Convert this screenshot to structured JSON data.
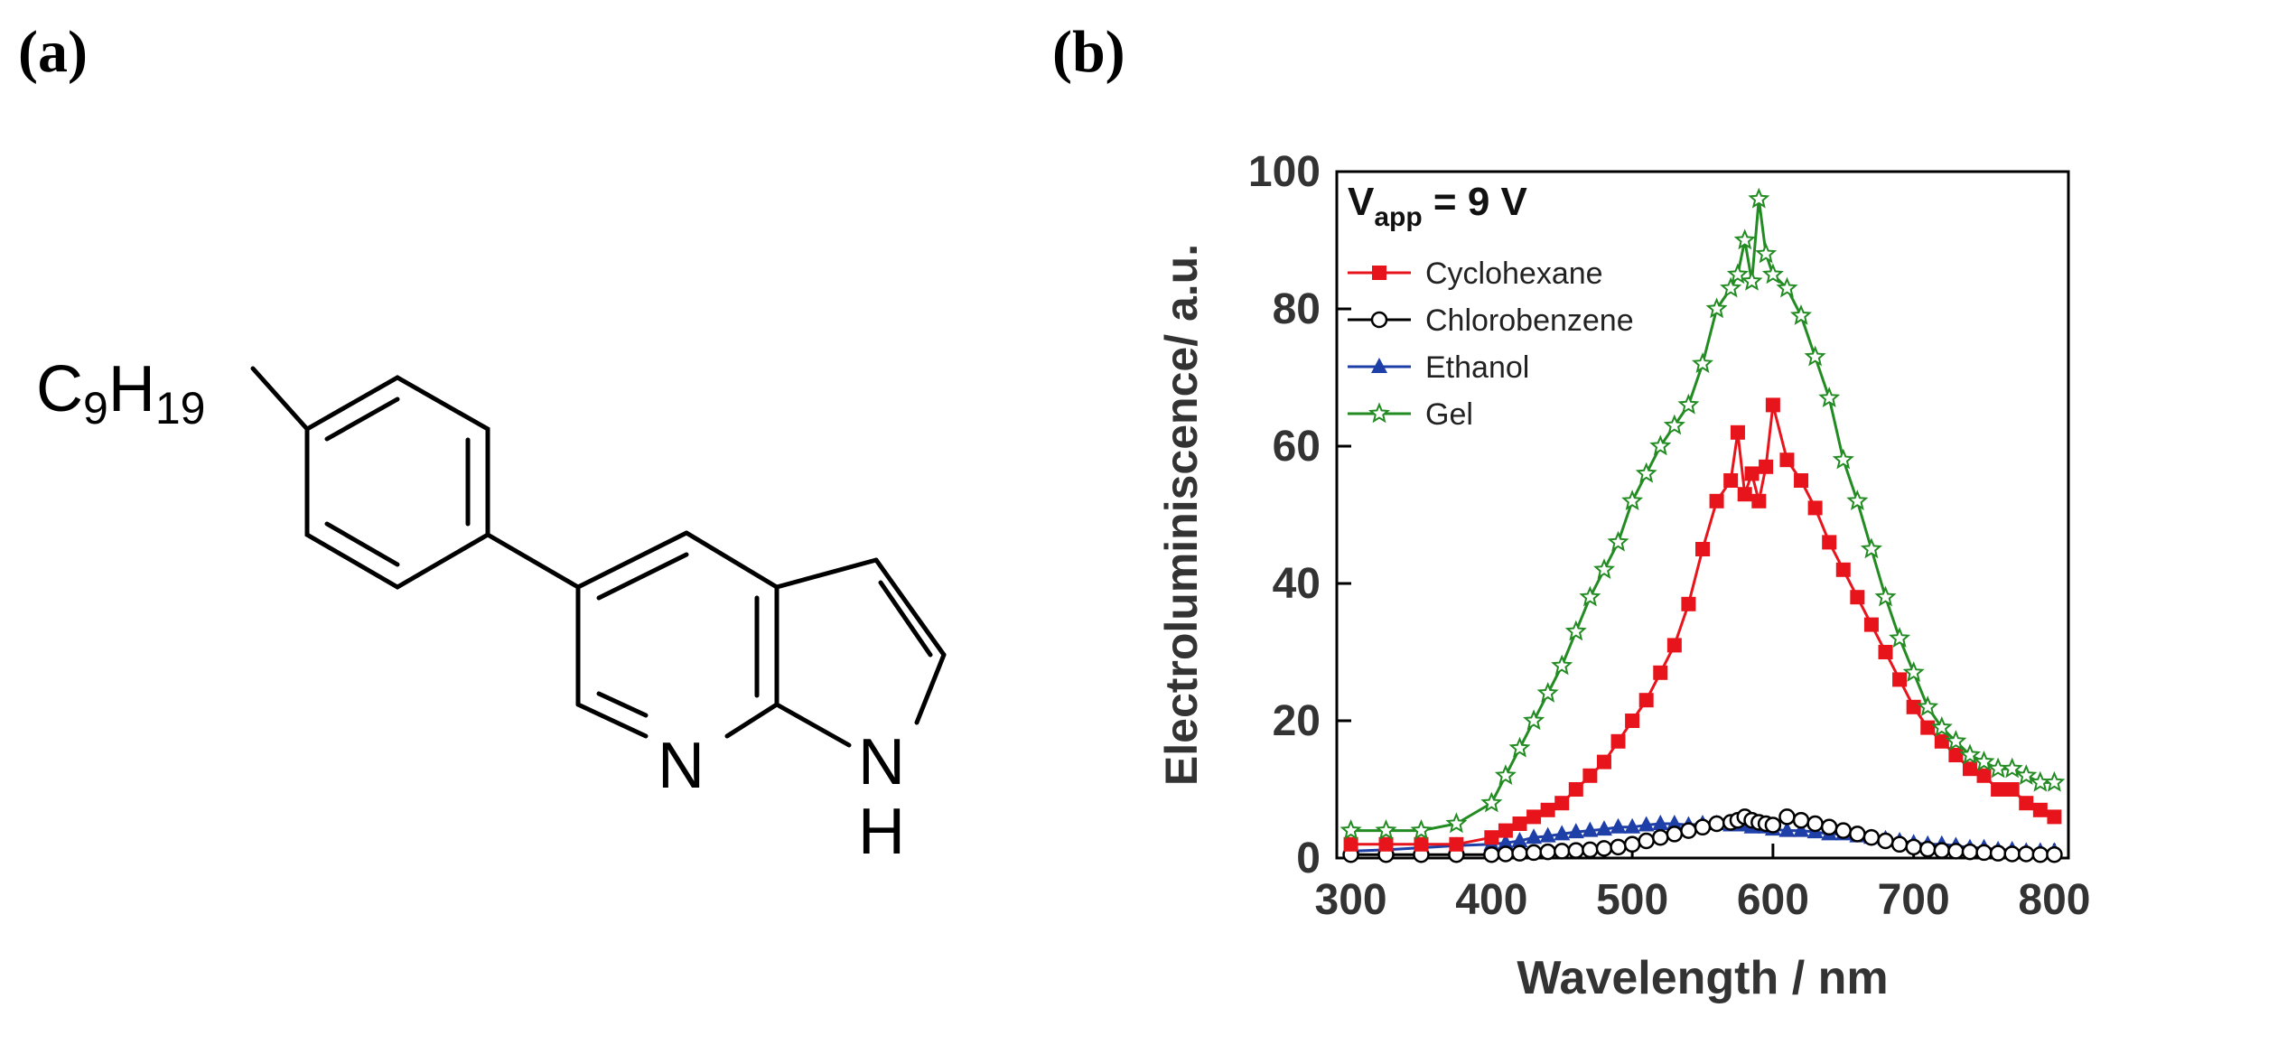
{
  "panels": {
    "a_label": "(a)",
    "b_label": "(b)"
  },
  "molecule": {
    "substituent_main": "C",
    "substituent_sub1": "9",
    "substituent_mid": "H",
    "substituent_sub2": "19",
    "atom_n_pyridine": "N",
    "atom_n_pyrrole": "N",
    "atom_h_pyrrole": "H"
  },
  "chart_data": {
    "type": "line",
    "xlabel": "Wavelength / nm",
    "ylabel": "Electroluminiscence/ a.u.",
    "xlim": [
      290,
      810
    ],
    "ylim": [
      0,
      100
    ],
    "xticks": [
      300,
      400,
      500,
      600,
      700,
      800
    ],
    "yticks": [
      0,
      20,
      40,
      60,
      80,
      100
    ],
    "annotation": {
      "main": "V",
      "sub": "app",
      "rest": " = 9 V"
    },
    "legend_position": "top-left",
    "grid": false,
    "x": [
      300,
      325,
      350,
      375,
      400,
      410,
      420,
      430,
      440,
      450,
      460,
      470,
      480,
      490,
      500,
      510,
      520,
      530,
      540,
      550,
      560,
      570,
      575,
      580,
      585,
      590,
      595,
      600,
      610,
      620,
      630,
      640,
      650,
      660,
      670,
      680,
      690,
      700,
      710,
      720,
      730,
      740,
      750,
      760,
      770,
      780,
      790,
      800
    ],
    "series": [
      {
        "name": "Cyclohexane",
        "color": "#e8141c",
        "marker": "square",
        "values": [
          2,
          2,
          2,
          2,
          3,
          4,
          5,
          6,
          7,
          8,
          10,
          12,
          14,
          17,
          20,
          23,
          27,
          31,
          37,
          45,
          52,
          55,
          62,
          53,
          56,
          52,
          57,
          66,
          58,
          55,
          51,
          46,
          42,
          38,
          34,
          30,
          26,
          22,
          19,
          17,
          15,
          13,
          12,
          10,
          10,
          8,
          7,
          6
        ]
      },
      {
        "name": "Chlorobenzene",
        "color": "#000000",
        "marker": "circle",
        "values": [
          0.5,
          0.5,
          0.5,
          0.5,
          0.5,
          0.6,
          0.7,
          0.8,
          0.9,
          1,
          1.1,
          1.2,
          1.4,
          1.6,
          2,
          2.5,
          3,
          3.5,
          4,
          4.5,
          5,
          5.2,
          5.5,
          6,
          5.5,
          5.2,
          5,
          4.8,
          6,
          5.5,
          5,
          4.5,
          4,
          3.5,
          3,
          2.5,
          2,
          1.6,
          1.3,
          1.1,
          1,
          0.9,
          0.8,
          0.7,
          0.6,
          0.6,
          0.5,
          0.5
        ]
      },
      {
        "name": "Ethanol",
        "color": "#1f3fa8",
        "marker": "triangle",
        "values": [
          1,
          1.2,
          1.5,
          1.8,
          2,
          2.2,
          2.5,
          3,
          3.2,
          3.5,
          3.8,
          4,
          4.2,
          4.5,
          4.5,
          4.8,
          5,
          5,
          4.8,
          5,
          5,
          4.8,
          5,
          4.8,
          4.5,
          4.8,
          4.5,
          4.2,
          4,
          4,
          3.8,
          3.5,
          3.5,
          3.2,
          3,
          2.8,
          2.5,
          2.2,
          2,
          2,
          1.8,
          1.5,
          1.5,
          1.2,
          1.2,
          1,
          1,
          1
        ]
      },
      {
        "name": "Gel",
        "color": "#228b22",
        "marker": "star",
        "values": [
          4,
          4,
          4,
          5,
          8,
          12,
          16,
          20,
          24,
          28,
          33,
          38,
          42,
          46,
          52,
          56,
          60,
          63,
          66,
          72,
          80,
          83,
          85,
          90,
          84,
          96,
          88,
          85,
          83,
          79,
          73,
          67,
          58,
          52,
          45,
          38,
          32,
          27,
          22,
          19,
          17,
          15,
          14,
          13,
          13,
          12,
          11,
          11
        ]
      }
    ]
  }
}
